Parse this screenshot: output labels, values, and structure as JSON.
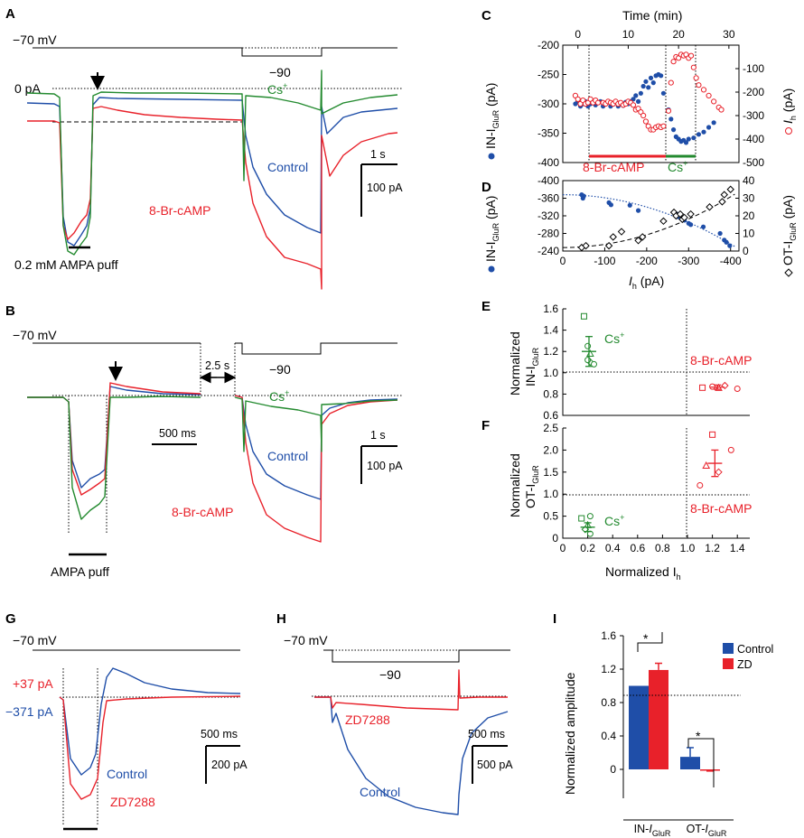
{
  "colors": {
    "red": "#e8212a",
    "blue": "#1f4ea8",
    "green": "#238a2f"
  },
  "panels": {
    "A": {
      "label": "A",
      "hold": "−70 mV",
      "step": "−90",
      "zero": "0 pA",
      "cs": "Cs",
      "cs_sup": "+",
      "control": "Control",
      "cbr": "8-Br-cAMP",
      "puff": "0.2 mM AMPA puff",
      "scale_t": "1 s",
      "scale_i": "100 pA"
    },
    "B": {
      "label": "B",
      "hold": "−70 mV",
      "step": "−90",
      "gap": "2.5 s",
      "cs": "Cs",
      "cs_sup": "+",
      "control": "Control",
      "cbr": "8-Br-cAMP",
      "puff": "AMPA puff",
      "scale_ms": "500 ms",
      "scale_t": "1 s",
      "scale_i": "100 pA"
    },
    "C": {
      "label": "C",
      "top_axis": "Time (min)",
      "left_axis": "IN-I",
      "left_sub": "GluR",
      "left_unit": " (pA)",
      "right_axis": "I",
      "right_sub": "h",
      "right_unit": " (pA)",
      "x_ticks": [
        "0",
        "10",
        "20",
        "30"
      ],
      "y_left_ticks": [
        "-200",
        "-250",
        "-300",
        "-350",
        "-400"
      ],
      "y_right_ticks": [
        "-100",
        "-200",
        "-300",
        "-400",
        "-500"
      ],
      "cbr": "8-Br-cAMP",
      "cs": "Cs",
      "cs_sup": "+"
    },
    "D": {
      "label": "D",
      "left_axis": "IN-I",
      "left_sub": "GluR",
      "left_unit": " (pA)",
      "right_axis": "OT-I",
      "right_sub": "GluR",
      "right_unit": " (pA)",
      "x_axis": "I",
      "x_sub": "h",
      "x_unit": " (pA)",
      "x_ticks": [
        "0",
        "-100",
        "-200",
        "-300",
        "-400"
      ],
      "y_left_ticks": [
        "-400",
        "-360",
        "-320",
        "-280",
        "-240"
      ],
      "y_right_ticks": [
        "40",
        "30",
        "20",
        "10",
        "0"
      ]
    },
    "E": {
      "label": "E",
      "y1": "Normalized",
      "y2": "IN-I",
      "y2_sub": "GluR",
      "y_ticks": [
        "1.6",
        "1.4",
        "1.2",
        "1.0",
        "0.8",
        "0.6"
      ],
      "cs": "Cs",
      "cs_sup": "+",
      "cbr": "8-Br-cAMP"
    },
    "F": {
      "label": "F",
      "y1": "Normalized",
      "y2": "OT-I",
      "y2_sub": "GluR",
      "y_ticks": [
        "2.5",
        "2.0",
        "1.5",
        "1.0",
        "0.5",
        "0"
      ],
      "x_ticks": [
        "0",
        "0.2",
        "0.4",
        "0.6",
        "0.8",
        "1.0",
        "1.2",
        "1.4"
      ],
      "x_axis": "Normalized I",
      "x_sub": "h",
      "cs": "Cs",
      "cs_sup": "+",
      "cbr": "8-Br-cAMP"
    },
    "G": {
      "label": "G",
      "hold": "−70 mV",
      "plus": "+37 pA",
      "minus": "−371 pA",
      "control": "Control",
      "zd": "ZD7288",
      "scale_ms": "500 ms",
      "scale_i": "200 pA"
    },
    "H": {
      "label": "H",
      "hold": "−70 mV",
      "step": "−90",
      "zd": "ZD7288",
      "control": "Control",
      "scale_ms": "500 ms",
      "scale_i": "500 pA"
    },
    "I": {
      "label": "I",
      "ylabel": "Normalized amplitude",
      "sig": "*"
    }
  },
  "chart_data": [
    {
      "panel": "C",
      "type": "scatter",
      "title": "",
      "xlabel": "Time (min)",
      "xlim": [
        -3,
        32
      ],
      "series": [
        {
          "name": "IN-IGluR",
          "axis": "left",
          "marker": "filled circle",
          "color": "#1f4ea8",
          "ylim": [
            -400,
            -200
          ],
          "points": [
            [
              -0.5,
              -300
            ],
            [
              0,
              -296
            ],
            [
              0.5,
              -304
            ],
            [
              1,
              -300
            ],
            [
              1.5,
              -296
            ],
            [
              2,
              -304
            ],
            [
              2.5,
              -300
            ],
            [
              3,
              -298
            ],
            [
              3.5,
              -302
            ],
            [
              4,
              -298
            ],
            [
              4.5,
              -296
            ],
            [
              5,
              -304
            ],
            [
              5.5,
              -300
            ],
            [
              6,
              -296
            ],
            [
              6.5,
              -304
            ],
            [
              7,
              -300
            ],
            [
              7.5,
              -296
            ],
            [
              8,
              -304
            ],
            [
              8.5,
              -298
            ],
            [
              9,
              -303
            ],
            [
              9.5,
              -297
            ],
            [
              10,
              -300
            ],
            [
              10.5,
              -296
            ],
            [
              11,
              -292
            ],
            [
              11.5,
              -286
            ],
            [
              12,
              -296
            ],
            [
              12.5,
              -282
            ],
            [
              13,
              -270
            ],
            [
              13.5,
              -262
            ],
            [
              14,
              -272
            ],
            [
              14.5,
              -256
            ],
            [
              15,
              -264
            ],
            [
              15.5,
              -252
            ],
            [
              16,
              -250
            ],
            [
              16.5,
              -252
            ],
            [
              17,
              -282
            ],
            [
              18,
              -310
            ],
            [
              18.5,
              -326
            ],
            [
              19,
              -344
            ],
            [
              19.5,
              -356
            ],
            [
              20,
              -360
            ],
            [
              20.5,
              -364
            ],
            [
              21,
              -362
            ],
            [
              21.5,
              -366
            ],
            [
              22,
              -360
            ],
            [
              23,
              -358
            ],
            [
              24,
              -352
            ],
            [
              25,
              -348
            ],
            [
              26,
              -340
            ],
            [
              27,
              -332
            ]
          ]
        },
        {
          "name": "Ih",
          "axis": "right",
          "marker": "open circle",
          "color": "#e8212a",
          "ylim": [
            -500,
            0
          ],
          "points": [
            [
              -0.5,
              -215
            ],
            [
              0,
              -230
            ],
            [
              0.5,
              -250
            ],
            [
              1,
              -235
            ],
            [
              1.5,
              -250
            ],
            [
              2,
              -245
            ],
            [
              2.5,
              -230
            ],
            [
              3,
              -245
            ],
            [
              3.5,
              -235
            ],
            [
              4,
              -245
            ],
            [
              5,
              -245
            ],
            [
              5.5,
              -250
            ],
            [
              6,
              -240
            ],
            [
              6.5,
              -245
            ],
            [
              7,
              -250
            ],
            [
              7.5,
              -240
            ],
            [
              8,
              -250
            ],
            [
              8.5,
              -245
            ],
            [
              9,
              -255
            ],
            [
              9.5,
              -250
            ],
            [
              10,
              -240
            ],
            [
              10.5,
              -245
            ],
            [
              11,
              -255
            ],
            [
              11.5,
              -275
            ],
            [
              12,
              -270
            ],
            [
              12.5,
              -285
            ],
            [
              13,
              -300
            ],
            [
              13.5,
              -325
            ],
            [
              14,
              -345
            ],
            [
              14.5,
              -360
            ],
            [
              15,
              -360
            ],
            [
              15.5,
              -350
            ],
            [
              16,
              -345
            ],
            [
              16.5,
              -350
            ],
            [
              17,
              -345
            ],
            [
              18,
              -280
            ],
            [
              18.5,
              -160
            ],
            [
              19,
              -70
            ],
            [
              19.5,
              -50
            ],
            [
              20,
              -55
            ],
            [
              20.5,
              -40
            ],
            [
              21,
              -45
            ],
            [
              21.5,
              -40
            ],
            [
              22,
              -55
            ],
            [
              22.5,
              -45
            ],
            [
              23,
              -95
            ],
            [
              23.5,
              -140
            ],
            [
              24,
              -170
            ],
            [
              25,
              -190
            ],
            [
              26,
              -215
            ],
            [
              27,
              -240
            ],
            [
              28,
              -265
            ],
            [
              28.5,
              -275
            ]
          ]
        }
      ],
      "annotations": [
        {
          "text": "8-Br-cAMP",
          "x_range": [
            4.5,
            17
          ]
        },
        {
          "text": "Cs+",
          "x_range": [
            17,
            22.5
          ]
        }
      ]
    },
    {
      "panel": "D",
      "type": "scatter",
      "xlabel": "Ih (pA)",
      "xlim": [
        0,
        -420
      ],
      "series": [
        {
          "name": "IN-IGluR",
          "axis": "left",
          "marker": "filled circle",
          "color": "#1f4ea8",
          "ylim": [
            -240,
            -400
          ],
          "fit": "dotted",
          "points": [
            [
              -45,
              -368
            ],
            [
              -50,
              -365
            ],
            [
              -48,
              -360
            ],
            [
              -110,
              -350
            ],
            [
              -115,
              -345
            ],
            [
              -160,
              -344
            ],
            [
              -180,
              -332
            ],
            [
              -270,
              -325
            ],
            [
              -275,
              -318
            ],
            [
              -285,
              -314
            ],
            [
              -290,
              -310
            ],
            [
              -300,
              -303
            ],
            [
              -305,
              -300
            ],
            [
              -335,
              -295
            ],
            [
              -375,
              -280
            ],
            [
              -385,
              -265
            ],
            [
              -390,
              -260
            ],
            [
              -398,
              -252
            ]
          ]
        },
        {
          "name": "OT-IGluR",
          "axis": "right",
          "marker": "open diamond",
          "color": "#000000",
          "ylim": [
            0,
            40
          ],
          "fit": "dashed",
          "points": [
            [
              -45,
              2
            ],
            [
              -55,
              3
            ],
            [
              -110,
              3
            ],
            [
              -120,
              8
            ],
            [
              -140,
              11
            ],
            [
              -180,
              6
            ],
            [
              -190,
              8
            ],
            [
              -240,
              17
            ],
            [
              -265,
              22
            ],
            [
              -270,
              20
            ],
            [
              -280,
              21
            ],
            [
              -285,
              18
            ],
            [
              -290,
              19
            ],
            [
              -305,
              21
            ],
            [
              -350,
              25
            ],
            [
              -380,
              28
            ],
            [
              -385,
              32
            ],
            [
              -400,
              35
            ]
          ]
        }
      ]
    },
    {
      "panel": "E",
      "type": "scatter",
      "ylabel": "Normalized IN-IGluR",
      "xlim": [
        0,
        1.5
      ],
      "ylim": [
        0.6,
        1.6
      ],
      "series": [
        {
          "name": "Cs+",
          "color": "#238a2f",
          "points": [
            [
              0.17,
              1.53
            ],
            [
              0.2,
              1.25
            ],
            [
              0.22,
              1.18
            ],
            [
              0.22,
              1.1
            ],
            [
              0.25,
              1.08
            ],
            [
              0.2,
              1.12
            ]
          ],
          "mean": [
            0.21,
            1.2
          ],
          "sem_y": 0.14
        },
        {
          "name": "8-Br-cAMP",
          "color": "#e8212a",
          "points": [
            [
              1.12,
              0.86
            ],
            [
              1.2,
              0.87
            ],
            [
              1.25,
              0.86
            ],
            [
              1.3,
              0.88
            ],
            [
              1.4,
              0.85
            ]
          ],
          "mean": [
            1.24,
            0.865
          ],
          "sem_y": 0.02
        }
      ]
    },
    {
      "panel": "F",
      "type": "scatter",
      "ylabel": "Normalized OT-IGluR",
      "xlabel": "Normalized Ih",
      "xlim": [
        0,
        1.5
      ],
      "ylim": [
        0,
        2.5
      ],
      "series": [
        {
          "name": "Cs+",
          "color": "#238a2f",
          "points": [
            [
              0.15,
              0.45
            ],
            [
              0.22,
              0.5
            ],
            [
              0.2,
              0.3
            ],
            [
              0.18,
              0.2
            ],
            [
              0.22,
              0.1
            ]
          ],
          "mean": [
            0.2,
            0.25
          ],
          "sem_y": 0.1
        },
        {
          "name": "8-Br-cAMP",
          "color": "#e8212a",
          "points": [
            [
              1.2,
              2.35
            ],
            [
              1.35,
              2.0
            ],
            [
              1.15,
              1.65
            ],
            [
              1.25,
              1.5
            ],
            [
              1.1,
              1.2
            ]
          ],
          "mean": [
            1.22,
            1.7
          ],
          "sem_y": 0.3
        }
      ]
    },
    {
      "panel": "I",
      "type": "bar",
      "ylabel": "Normalized amplitude",
      "ylim": [
        -0.1,
        1.6
      ],
      "y_ticks": [
        0,
        0.4,
        0.8,
        1.2,
        1.6
      ],
      "categories": [
        "IN-IGluR",
        "OT-IGluR"
      ],
      "series": [
        {
          "name": "Control",
          "color": "#1f4ea8",
          "values": [
            1.0,
            0.15
          ],
          "errors": [
            0,
            0.11
          ]
        },
        {
          "name": "ZD",
          "color": "#e8212a",
          "values": [
            1.19,
            -0.01
          ],
          "errors": [
            0.08,
            0.01
          ]
        }
      ],
      "reference_line": 1.0,
      "significance": [
        "*",
        "*"
      ]
    }
  ]
}
